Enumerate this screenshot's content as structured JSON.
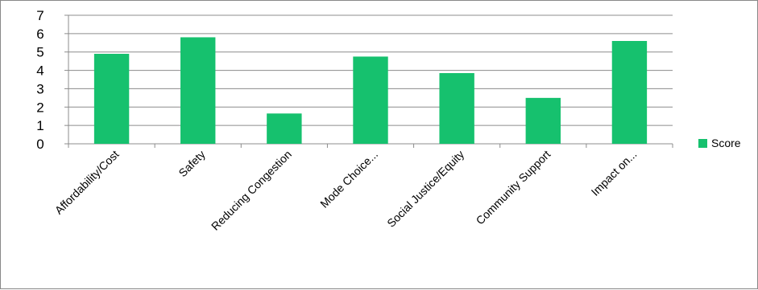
{
  "chart_data": {
    "type": "bar",
    "categories": [
      "Affordability/Cost",
      "Safety",
      "Reducing Congestion",
      "Mode Choice...",
      "Social Justice/Equity",
      "Community Support",
      "Impact on..."
    ],
    "series": [
      {
        "name": "Score",
        "values": [
          4.9,
          5.8,
          1.65,
          4.75,
          3.85,
          2.5,
          5.6
        ],
        "color": "#16C16E"
      }
    ],
    "ylim": [
      0,
      7
    ],
    "yticks": [
      0,
      1,
      2,
      3,
      4,
      5,
      6,
      7
    ],
    "grid": true,
    "legend_position": "right",
    "title": "",
    "xlabel": "",
    "ylabel": ""
  }
}
